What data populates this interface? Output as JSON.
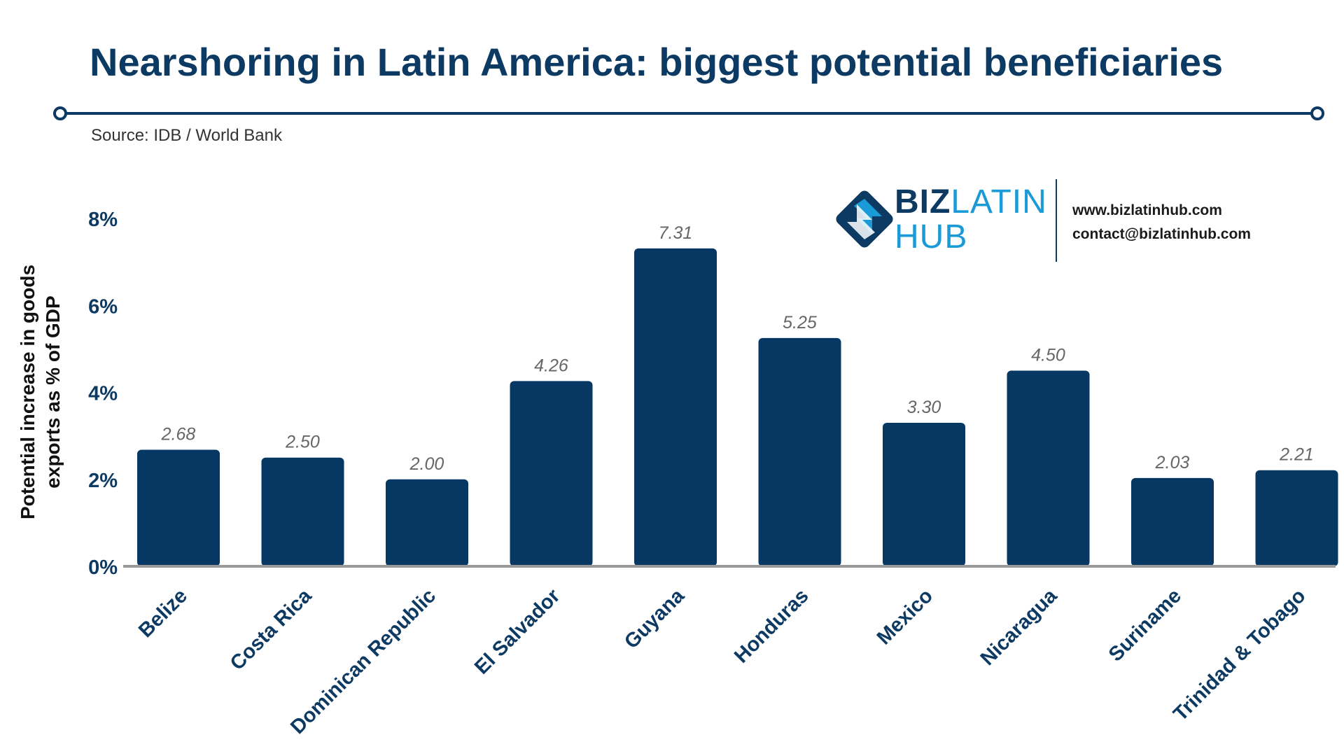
{
  "header": {
    "title": "Nearshoring in Latin America: biggest potential beneficiaries",
    "source": "Source:  IDB / World Bank"
  },
  "brand": {
    "part1": "BIZ",
    "part2": "LATIN",
    "part3": "HUB",
    "website": "www.bizlatinhub.com",
    "email": "contact@bizlatinhub.com",
    "logo_icon": "bizlatinhub-logo-icon"
  },
  "colors": {
    "bar": "#063863",
    "title": "#0d3a63",
    "accent": "#1a9ad6",
    "axis": "#9a9a9a",
    "value_label": "#666666"
  },
  "chart_data": {
    "type": "bar",
    "title": "Nearshoring in Latin America: biggest potential beneficiaries",
    "xlabel": "",
    "ylabel": "Potential increase in goods exports as % of GDP",
    "ylabel_lines": [
      "Potential increase in goods",
      "exports as % of GDP"
    ],
    "ylim": [
      0,
      8
    ],
    "yticks": [
      0,
      2,
      4,
      6,
      8
    ],
    "ytick_labels": [
      "0%",
      "2%",
      "4%",
      "6%",
      "8%"
    ],
    "grid": false,
    "categories": [
      "Belize",
      "Costa Rica",
      "Dominican Republic",
      "El Salvador",
      "Guyana",
      "Honduras",
      "Mexico",
      "Nicaragua",
      "Suriname",
      "Trinidad & Tobago"
    ],
    "values": [
      2.68,
      2.5,
      2.0,
      4.26,
      7.31,
      5.25,
      3.3,
      4.5,
      2.03,
      2.21
    ],
    "value_labels": [
      "2.68",
      "2.50",
      "2.00",
      "4.26",
      "7.31",
      "5.25",
      "3.30",
      "4.50",
      "2.03",
      "2.21"
    ]
  }
}
